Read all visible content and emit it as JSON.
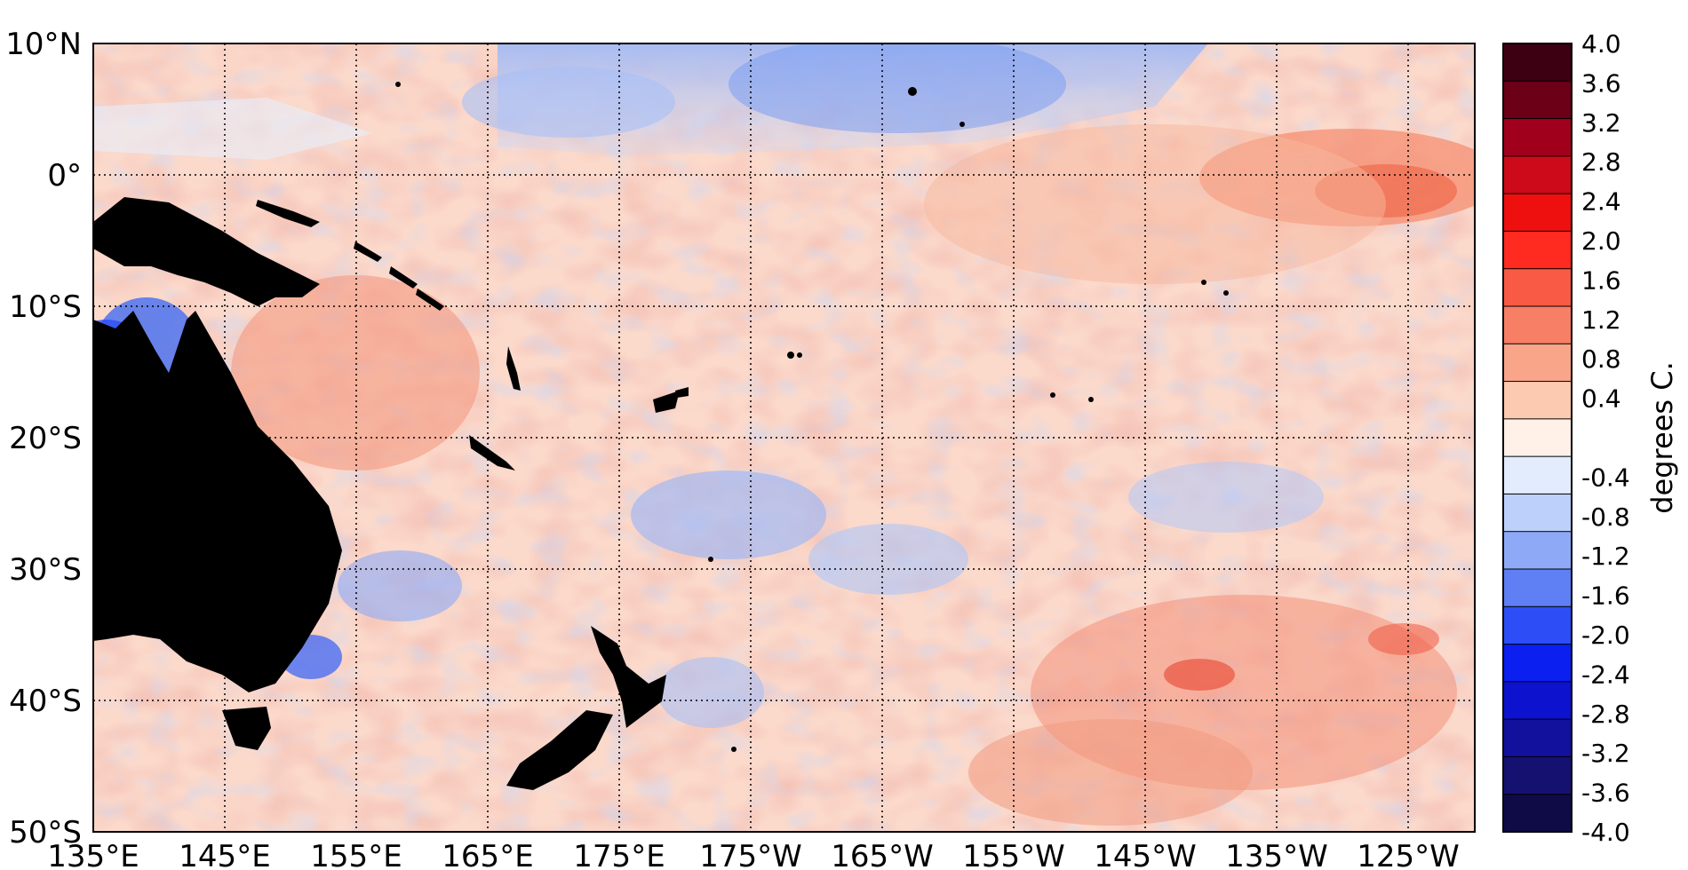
{
  "map": {
    "lat_labels": [
      "10°N",
      "0°",
      "10°S",
      "20°S",
      "30°S",
      "40°S",
      "50°S"
    ],
    "lon_labels": [
      "135°E",
      "145°E",
      "155°E",
      "165°E",
      "175°E",
      "175°W",
      "165°W",
      "155°W",
      "145°W",
      "135°W",
      "125°W"
    ],
    "grid": "dotted",
    "land_color": "#000000"
  },
  "colorbar": {
    "title": "degrees C.",
    "labels": [
      "4.0",
      "3.6",
      "3.2",
      "2.8",
      "2.4",
      "2.0",
      "1.6",
      "1.2",
      "0.8",
      "0.4",
      "",
      "-0.4",
      "-0.8",
      "-1.2",
      "-1.6",
      "-2.0",
      "-2.4",
      "-2.8",
      "-3.2",
      "-3.6",
      "-4.0"
    ],
    "colors": [
      "#3d0012",
      "#6b0016",
      "#a0001c",
      "#cc0a1a",
      "#ee0f0f",
      "#ff2a20",
      "#f85a45",
      "#f77f66",
      "#f9a58a",
      "#fcc9b1",
      "#fff0e8",
      "#e2ecfd",
      "#bcd0fb",
      "#8eaaf7",
      "#5f7ff5",
      "#2d4ef6",
      "#0a1ff0",
      "#0d12cf",
      "#12119e",
      "#151170",
      "#0e0b47"
    ]
  }
}
